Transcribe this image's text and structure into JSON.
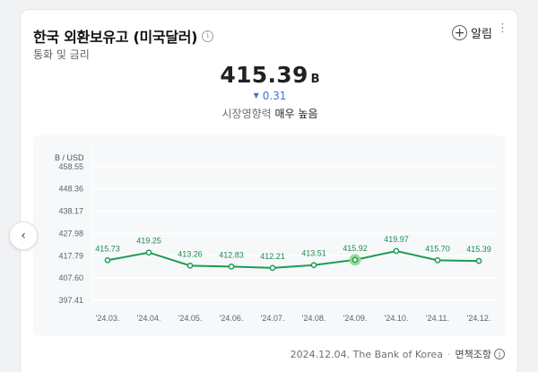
{
  "header": {
    "title": "한국 외환보유고 (미국달러)",
    "info_icon": "info-icon",
    "subtitle": "통화 및 금리",
    "alarm_label": "알림",
    "plus_icon": "plus-circle-icon",
    "more_icon": "more-vertical-icon"
  },
  "summary": {
    "value": "415.39",
    "unit": "B",
    "change_direction": "down",
    "change": "0.31",
    "impact_label": "시장영향력",
    "impact_level": "매우 높음"
  },
  "footer": {
    "date": "2024.12.04.",
    "source": "The Bank of Korea",
    "separator": "·",
    "disclaimer": "면책조항"
  },
  "nav": {
    "prev_icon": "chevron-left-icon"
  },
  "colors": {
    "line": "#1e9b54",
    "label": "#1e8a4c",
    "highlight": "#8fdc8f",
    "change_down": "#3a73d8"
  },
  "chart_data": {
    "type": "line",
    "ylabel": "B / USD",
    "yticks": [
      397.41,
      407.6,
      417.79,
      427.98,
      438.17,
      448.36,
      458.55
    ],
    "ylim": [
      397.41,
      468.74
    ],
    "grid": true,
    "categories": [
      "'24.03.",
      "'24.04.",
      "'24.05.",
      "'24.06.",
      "'24.07.",
      "'24.08.",
      "'24.09.",
      "'24.10.",
      "'24.11.",
      "'24.12."
    ],
    "series": [
      {
        "values": [
          415.73,
          419.25,
          413.26,
          412.83,
          412.21,
          413.51,
          415.92,
          419.97,
          415.7,
          415.39
        ],
        "labels": [
          "415.73",
          "419.25",
          "413.26",
          "412.83",
          "412.21",
          "413.51",
          "415.92",
          "419.97",
          "415.70",
          "415.39"
        ],
        "highlight_index": 6
      }
    ]
  }
}
